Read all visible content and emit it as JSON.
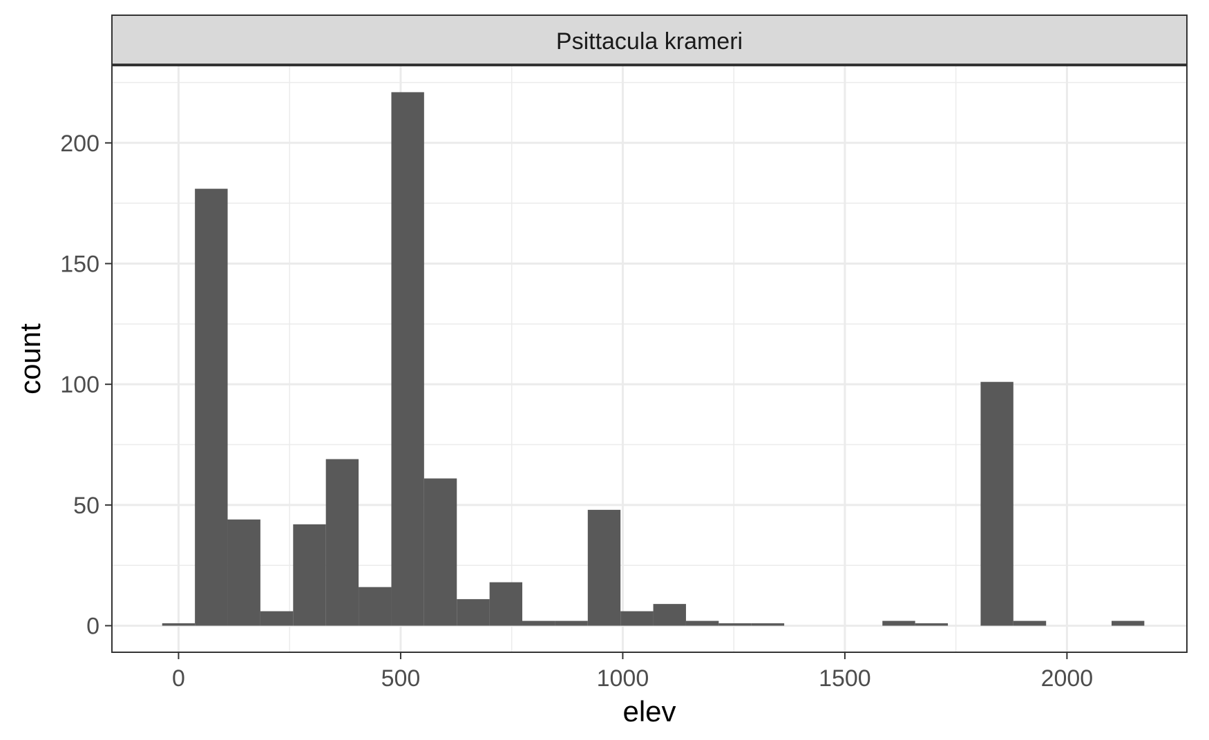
{
  "chart_data": {
    "type": "bar",
    "facet_label": "Psittacula krameri",
    "xlabel": "elev",
    "ylabel": "count",
    "xlim": [
      -150,
      2270
    ],
    "ylim": [
      -11,
      232
    ],
    "x_ticks": [
      0,
      500,
      1000,
      1500,
      2000
    ],
    "x_tick_labels": [
      "0",
      "500",
      "1000",
      "1500",
      "2000"
    ],
    "y_ticks": [
      0,
      50,
      100,
      150,
      200
    ],
    "y_tick_labels": [
      "0",
      "50",
      "100",
      "150",
      "200"
    ],
    "x_minor_breaks": [
      250,
      750,
      1250,
      1750
    ],
    "y_minor_breaks": [
      25,
      75,
      125,
      175,
      225
    ],
    "bin_width": 73.7,
    "bins": [
      {
        "x": 0,
        "count": 1
      },
      {
        "x": 73.7,
        "count": 181
      },
      {
        "x": 147.4,
        "count": 44
      },
      {
        "x": 221.1,
        "count": 6
      },
      {
        "x": 294.8,
        "count": 42
      },
      {
        "x": 368.5,
        "count": 69
      },
      {
        "x": 442.2,
        "count": 16
      },
      {
        "x": 515.9,
        "count": 221
      },
      {
        "x": 589.6,
        "count": 61
      },
      {
        "x": 663.3,
        "count": 11
      },
      {
        "x": 737.0,
        "count": 18
      },
      {
        "x": 810.7,
        "count": 2
      },
      {
        "x": 884.4,
        "count": 2
      },
      {
        "x": 958.1,
        "count": 48
      },
      {
        "x": 1031.8,
        "count": 6
      },
      {
        "x": 1105.5,
        "count": 9
      },
      {
        "x": 1179.2,
        "count": 2
      },
      {
        "x": 1252.9,
        "count": 1
      },
      {
        "x": 1326.6,
        "count": 1
      },
      {
        "x": 1400.3,
        "count": 0
      },
      {
        "x": 1474.0,
        "count": 0
      },
      {
        "x": 1547.7,
        "count": 0
      },
      {
        "x": 1621.4,
        "count": 2
      },
      {
        "x": 1695.1,
        "count": 1
      },
      {
        "x": 1768.8,
        "count": 0
      },
      {
        "x": 1842.5,
        "count": 101
      },
      {
        "x": 1916.2,
        "count": 2
      },
      {
        "x": 1989.9,
        "count": 0
      },
      {
        "x": 2063.6,
        "count": 0
      },
      {
        "x": 2137.3,
        "count": 2
      }
    ],
    "bar_color": "#595959",
    "grid": true,
    "theme": "bw"
  }
}
